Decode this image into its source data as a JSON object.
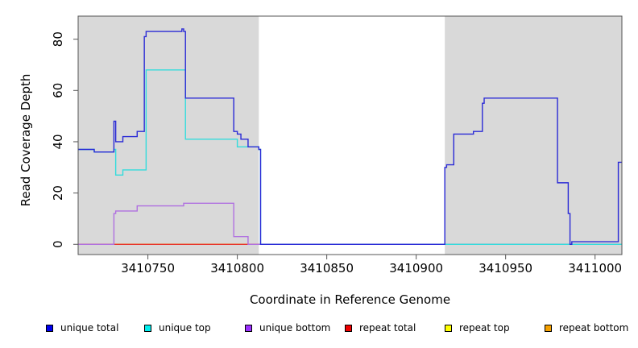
{
  "chart_data": {
    "type": "line",
    "xlabel": "Coordinate in Reference Genome",
    "ylabel": "Read Coverage Depth",
    "xlim": [
      3410711,
      3411015
    ],
    "ylim": [
      -4,
      89
    ],
    "x_ticks": [
      3410750,
      3410800,
      3410850,
      3410900,
      3410950,
      3411000
    ],
    "y_ticks": [
      0,
      20,
      40,
      60,
      80
    ],
    "shaded_regions": [
      [
        3410711,
        3410812
      ],
      [
        3410916,
        3411015
      ]
    ],
    "shade_color": "#d9d9d9",
    "series": [
      {
        "name": "unique total",
        "color": "#2a2ad6",
        "x": [
          3410711,
          3410720,
          3410731,
          3410732,
          3410736,
          3410744,
          3410748,
          3410749,
          3410769,
          3410770,
          3410771,
          3410798,
          3410800,
          3410802,
          3410806,
          3410812,
          3410813,
          3410916,
          3410917,
          3410921,
          3410932,
          3410937,
          3410938,
          3410979,
          3410985,
          3410986,
          3410987,
          3411013,
          3411015
        ],
        "y": [
          37,
          36,
          48,
          40,
          42,
          44,
          81,
          83,
          84,
          83,
          57,
          44,
          43,
          41,
          38,
          37,
          0,
          30,
          31,
          43,
          44,
          55,
          57,
          24,
          12,
          0,
          1,
          32,
          32
        ]
      },
      {
        "name": "unique top",
        "color": "#33dcdc",
        "x": [
          3410711,
          3410720,
          3410731,
          3410732,
          3410736,
          3410748,
          3410749,
          3410770,
          3410771,
          3410798,
          3410800,
          3410806,
          3410812,
          3410813,
          3410916,
          3411015
        ],
        "y": [
          37,
          36,
          37,
          27,
          29,
          29,
          68,
          68,
          41,
          41,
          38,
          38,
          37,
          0,
          0,
          0
        ]
      },
      {
        "name": "unique bottom",
        "color": "#b070e0",
        "x": [
          3410711,
          3410731,
          3410732,
          3410744,
          3410770,
          3410798,
          3410806,
          3410807,
          3411015
        ],
        "y": [
          0,
          12,
          13,
          15,
          16,
          3,
          0,
          0,
          0
        ]
      },
      {
        "name": "repeat total",
        "color": "#e8342c",
        "x": [
          3410711,
          3411015
        ],
        "y": [
          0,
          0
        ]
      },
      {
        "name": "repeat top",
        "color": "#e8e800",
        "x": [
          3410711,
          3411015
        ],
        "y": [
          0,
          0
        ]
      },
      {
        "name": "repeat bottom",
        "color": "#f5a000",
        "x": [
          3410711,
          3410812,
          3410916,
          3411015
        ],
        "y": [
          0,
          0,
          0,
          0
        ]
      }
    ],
    "legend": {
      "placement": "bottom",
      "items": [
        {
          "label": "unique total",
          "color": "#0000ee"
        },
        {
          "label": "unique top",
          "color": "#00eeee"
        },
        {
          "label": "unique bottom",
          "color": "#9b30ff"
        },
        {
          "label": "repeat total",
          "color": "#ee0000"
        },
        {
          "label": "repeat top",
          "color": "#ffff00"
        },
        {
          "label": "repeat bottom",
          "color": "#f5a000"
        }
      ]
    }
  }
}
